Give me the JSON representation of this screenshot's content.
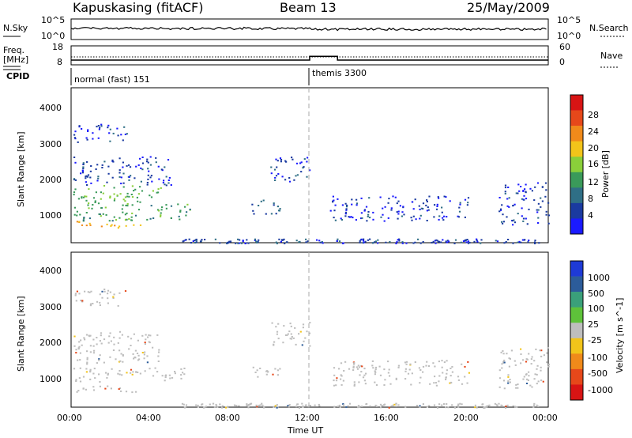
{
  "header": {
    "title": "Kapuskasing (fitACF)",
    "beam": "Beam 13",
    "date": "25/May/2009"
  },
  "strips": {
    "nsky_label": "N.Sky",
    "nsky_ticks": [
      "10^5",
      "10^0"
    ],
    "nsearch_label": "N.Search",
    "nsearch_ticks": [
      "10^5",
      "10^0"
    ],
    "freq_label": "Freq.",
    "freq_unit": "[MHz]",
    "freq_ticks": [
      "18",
      "8"
    ],
    "nave_label": "Nave",
    "nave_ticks": [
      "60",
      "0"
    ],
    "cpid_label": "CPID",
    "cpid_programs": [
      {
        "name": "normal (fast) 151",
        "start_hour": 0
      },
      {
        "name": "themis 3300",
        "start_hour": 12
      }
    ]
  },
  "x_axis": {
    "label": "Time UT",
    "tick_labels": [
      "00:00",
      "04:00",
      "08:00",
      "12:00",
      "16:00",
      "20:00",
      "00:00"
    ],
    "range_hours": [
      0,
      24
    ]
  },
  "power_panel": {
    "ylabel": "Slant Range [km]",
    "y_ticks": [
      "1000",
      "2000",
      "3000",
      "4000"
    ],
    "cbar_label": "Power [dB]",
    "cbar_ticks": [
      "4",
      "8",
      "12",
      "16",
      "20",
      "24",
      "28"
    ],
    "cbar_colors": [
      "#1a1aff",
      "#1a3aa0",
      "#2f6f86",
      "#3a9a5a",
      "#8acf3a",
      "#f2c41a",
      "#f08a1a",
      "#e6481a",
      "#d81414"
    ]
  },
  "velocity_panel": {
    "ylabel": "Slant Range [km]",
    "y_ticks": [
      "1000",
      "2000",
      "3000",
      "4000"
    ],
    "cbar_label": "Velocity [m s^-1]",
    "cbar_ticks": [
      "1000",
      "500",
      "100",
      "25",
      "-25",
      "-100",
      "-500",
      "-1000"
    ],
    "cbar_colors": [
      "#1e3ad6",
      "#2c5c9a",
      "#3aa07a",
      "#5ec23a",
      "#bebebe",
      "#f2c41a",
      "#f08a1a",
      "#e6481a",
      "#d81414"
    ]
  },
  "chart_data": {
    "type": "heatmap",
    "x_range_hours": [
      0,
      24
    ],
    "y_range_km": [
      180,
      4500
    ],
    "power_regions": [
      {
        "x0": 0.1,
        "x1": 3.5,
        "y0": 600,
        "y1": 800,
        "power_db": 24
      },
      {
        "x0": 0.1,
        "x1": 6.0,
        "y0": 800,
        "y1": 1300,
        "power_db": 14
      },
      {
        "x0": 0.1,
        "x1": 4.5,
        "y0": 1300,
        "y1": 1800,
        "power_db": 16
      },
      {
        "x0": 0.1,
        "x1": 5.0,
        "y0": 1800,
        "y1": 2600,
        "power_db": 6
      },
      {
        "x0": 0.1,
        "x1": 2.8,
        "y0": 3000,
        "y1": 3500,
        "power_db": 5
      },
      {
        "x0": 9.0,
        "x1": 10.5,
        "y0": 1000,
        "y1": 1400,
        "power_db": 8
      },
      {
        "x0": 10.0,
        "x1": 12.0,
        "y0": 1900,
        "y1": 2600,
        "power_db": 6
      },
      {
        "x0": 13.0,
        "x1": 20.0,
        "y0": 800,
        "y1": 1500,
        "power_db": 5
      },
      {
        "x0": 21.5,
        "x1": 24.0,
        "y0": 700,
        "y1": 1900,
        "power_db": 5
      }
    ],
    "velocity_regions": [
      {
        "x0": 0.1,
        "x1": 3.5,
        "y0": 600,
        "y1": 800,
        "velocity": 0
      },
      {
        "x0": 0.1,
        "x1": 5.8,
        "y0": 900,
        "y1": 1300,
        "velocity": 0
      },
      {
        "x0": 0.1,
        "x1": 4.5,
        "y0": 1400,
        "y1": 2300,
        "velocity": 0
      },
      {
        "x0": 0.1,
        "x1": 2.8,
        "y0": 3000,
        "y1": 3500,
        "velocity": 0
      },
      {
        "x0": 9.0,
        "x1": 10.5,
        "y0": 1000,
        "y1": 1400,
        "velocity": 0
      },
      {
        "x0": 10.0,
        "x1": 12.0,
        "y0": 1900,
        "y1": 2600,
        "velocity": 0
      },
      {
        "x0": 13.0,
        "x1": 20.0,
        "y0": 800,
        "y1": 1500,
        "velocity": 0
      },
      {
        "x0": 21.5,
        "x1": 24.0,
        "y0": 700,
        "y1": 1900,
        "velocity": 0
      }
    ],
    "transmit_freq_mhz": [
      {
        "x0": 0,
        "x1": 12,
        "value": 10.5
      },
      {
        "x0": 12,
        "x1": 13.4,
        "value": 12.5
      },
      {
        "x0": 13.4,
        "x1": 24,
        "value": 10.5
      }
    ],
    "nave": [
      {
        "x0": 0,
        "x1": 12,
        "value": 25
      },
      {
        "x0": 12,
        "x1": 24,
        "value": 25
      }
    ],
    "cpid_change_hour": 12
  }
}
